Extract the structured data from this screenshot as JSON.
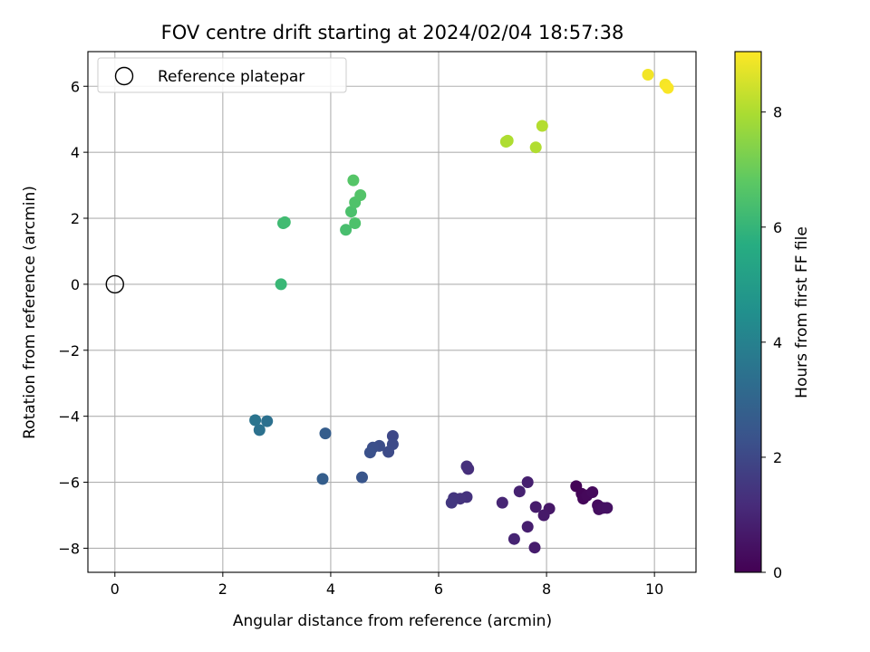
{
  "chart_data": {
    "type": "scatter",
    "title": "FOV centre drift starting at 2024/02/04 18:57:38",
    "xlabel": "Angular distance from reference (arcmin)",
    "ylabel": "Rotation from reference (arcmin)",
    "xlim": [
      -0.5,
      10.77
    ],
    "ylim": [
      -8.73,
      7.05
    ],
    "xticks": [
      0,
      2,
      4,
      6,
      8,
      10
    ],
    "yticks": [
      -8,
      -6,
      -4,
      -2,
      0,
      2,
      4,
      6
    ],
    "grid": true,
    "colormap": "viridis",
    "colorbar": {
      "label": "Hours from first FF file",
      "range": [
        0,
        9.05
      ],
      "ticks": [
        0,
        2,
        4,
        6,
        8
      ]
    },
    "reference": {
      "label": "Reference platepar",
      "x": 0,
      "y": 0
    },
    "legend": {
      "placement": "top-left",
      "entries": [
        "Reference platepar"
      ]
    },
    "points": [
      {
        "x": 8.55,
        "y": -6.12,
        "hours": 0.05
      },
      {
        "x": 8.65,
        "y": -6.35,
        "hours": 0.1
      },
      {
        "x": 8.68,
        "y": -6.5,
        "hours": 0.15
      },
      {
        "x": 8.75,
        "y": -6.4,
        "hours": 0.2
      },
      {
        "x": 8.85,
        "y": -6.3,
        "hours": 0.25
      },
      {
        "x": 8.95,
        "y": -6.7,
        "hours": 0.3
      },
      {
        "x": 8.97,
        "y": -6.82,
        "hours": 0.35
      },
      {
        "x": 9.05,
        "y": -6.78,
        "hours": 0.4
      },
      {
        "x": 9.12,
        "y": -6.78,
        "hours": 0.45
      },
      {
        "x": 8.05,
        "y": -6.8,
        "hours": 0.6
      },
      {
        "x": 7.95,
        "y": -7.0,
        "hours": 0.65
      },
      {
        "x": 7.8,
        "y": -6.75,
        "hours": 0.7
      },
      {
        "x": 7.78,
        "y": -7.98,
        "hours": 0.75
      },
      {
        "x": 7.65,
        "y": -7.35,
        "hours": 0.8
      },
      {
        "x": 7.65,
        "y": -6.0,
        "hours": 0.85
      },
      {
        "x": 7.5,
        "y": -6.28,
        "hours": 0.9
      },
      {
        "x": 7.4,
        "y": -7.72,
        "hours": 0.95
      },
      {
        "x": 7.18,
        "y": -6.62,
        "hours": 1.0
      },
      {
        "x": 6.55,
        "y": -5.6,
        "hours": 1.25
      },
      {
        "x": 6.52,
        "y": -5.52,
        "hours": 1.3
      },
      {
        "x": 6.52,
        "y": -6.45,
        "hours": 1.35
      },
      {
        "x": 6.4,
        "y": -6.5,
        "hours": 1.4
      },
      {
        "x": 6.28,
        "y": -6.48,
        "hours": 1.45
      },
      {
        "x": 6.24,
        "y": -6.62,
        "hours": 1.5
      },
      {
        "x": 5.15,
        "y": -4.6,
        "hours": 2.0
      },
      {
        "x": 5.15,
        "y": -4.85,
        "hours": 2.05
      },
      {
        "x": 5.07,
        "y": -5.08,
        "hours": 2.1
      },
      {
        "x": 4.9,
        "y": -4.9,
        "hours": 2.15
      },
      {
        "x": 4.78,
        "y": -4.95,
        "hours": 2.2
      },
      {
        "x": 4.73,
        "y": -5.1,
        "hours": 2.25
      },
      {
        "x": 4.58,
        "y": -5.85,
        "hours": 2.4
      },
      {
        "x": 3.9,
        "y": -4.52,
        "hours": 2.7
      },
      {
        "x": 3.85,
        "y": -5.9,
        "hours": 2.75
      },
      {
        "x": 2.82,
        "y": -4.15,
        "hours": 3.4
      },
      {
        "x": 2.68,
        "y": -4.42,
        "hours": 3.45
      },
      {
        "x": 2.6,
        "y": -4.12,
        "hours": 3.55
      },
      {
        "x": 3.08,
        "y": 0.0,
        "hours": 6.1
      },
      {
        "x": 3.12,
        "y": 1.85,
        "hours": 6.2
      },
      {
        "x": 3.15,
        "y": 1.88,
        "hours": 6.25
      },
      {
        "x": 4.28,
        "y": 1.65,
        "hours": 6.4
      },
      {
        "x": 4.38,
        "y": 2.2,
        "hours": 6.45
      },
      {
        "x": 4.45,
        "y": 1.85,
        "hours": 6.5
      },
      {
        "x": 4.45,
        "y": 2.48,
        "hours": 6.55
      },
      {
        "x": 4.55,
        "y": 2.7,
        "hours": 6.6
      },
      {
        "x": 4.42,
        "y": 3.15,
        "hours": 6.65
      },
      {
        "x": 7.25,
        "y": 4.32,
        "hours": 8.0
      },
      {
        "x": 7.28,
        "y": 4.35,
        "hours": 8.02
      },
      {
        "x": 7.8,
        "y": 4.15,
        "hours": 8.05
      },
      {
        "x": 7.92,
        "y": 4.8,
        "hours": 8.1
      },
      {
        "x": 9.88,
        "y": 6.35,
        "hours": 8.9
      },
      {
        "x": 10.2,
        "y": 6.05,
        "hours": 8.95
      },
      {
        "x": 10.25,
        "y": 5.95,
        "hours": 9.0
      }
    ]
  },
  "colors": {
    "grid": "#b0b0b0",
    "axis": "#000000",
    "reference_marker": "#000000",
    "legend_border": "#cccccc"
  }
}
